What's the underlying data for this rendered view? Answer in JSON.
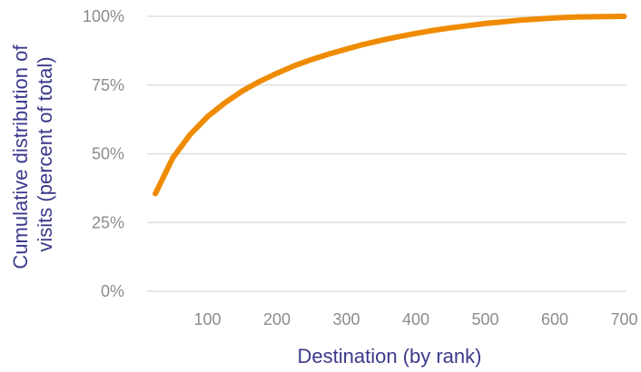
{
  "chart_data": {
    "type": "line",
    "title": "",
    "xlabel": "Destination (by rank)",
    "ylabel_lines": [
      "Cumulative distribution of",
      "visits (percent of total)"
    ],
    "xlim": [
      0,
      700
    ],
    "ylim": [
      0,
      100
    ],
    "x_ticks": [
      100,
      200,
      300,
      400,
      500,
      600,
      700
    ],
    "x_tick_labels": [
      "100",
      "200",
      "300",
      "400",
      "500",
      "600",
      "700"
    ],
    "y_ticks": [
      0,
      25,
      50,
      75,
      100
    ],
    "y_tick_labels": [
      "0%",
      "25%",
      "50%",
      "75%",
      "100%"
    ],
    "grid": true,
    "legend": "none",
    "series": [
      {
        "x": [
          25,
          50,
          75,
          100,
          125,
          150,
          175,
          200,
          225,
          250,
          275,
          300,
          325,
          350,
          375,
          400,
          425,
          450,
          475,
          500,
          525,
          550,
          575,
          600,
          625,
          650,
          675,
          700
        ],
        "y": [
          35.5,
          48.5,
          57,
          63.5,
          68.5,
          72.8,
          76.3,
          79.3,
          82,
          84.3,
          86.3,
          88.1,
          89.8,
          91.3,
          92.6,
          93.8,
          94.9,
          95.8,
          96.6,
          97.4,
          98.0,
          98.6,
          99.0,
          99.4,
          99.7,
          99.85,
          99.95,
          100
        ]
      }
    ],
    "colors": {
      "line": "#ef8b00",
      "axis_title": "#3b3a8c",
      "tick_label": "#8c8c8c",
      "grid": "#d9d9d9"
    }
  }
}
